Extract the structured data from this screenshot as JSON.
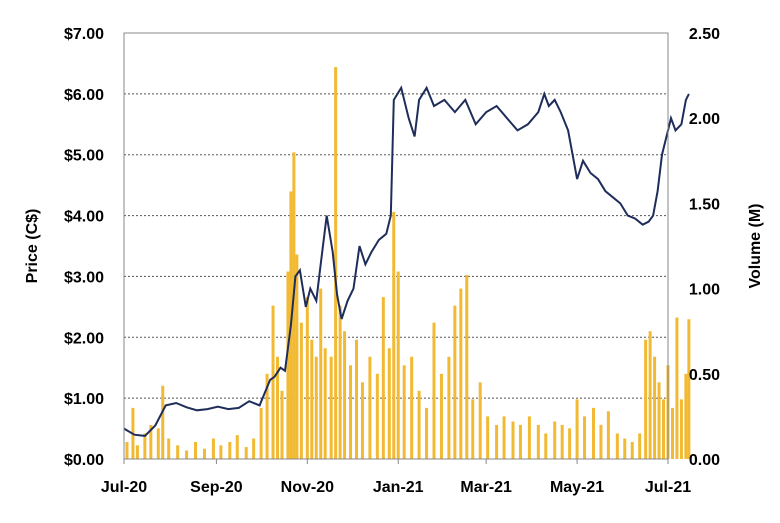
{
  "chart_data": {
    "type": "bar+line",
    "title": "",
    "xlabel": "",
    "ylabel_left": "Price (C$)",
    "ylabel_right": "Volume (M)",
    "x_ticks": [
      "Jul-20",
      "Sep-20",
      "Nov-20",
      "Jan-21",
      "Mar-21",
      "May-21",
      "Jul-21"
    ],
    "y_left_ticks": [
      "$0.00",
      "$1.00",
      "$2.00",
      "$3.00",
      "$4.00",
      "$5.00",
      "$6.00",
      "$7.00"
    ],
    "y_right_ticks": [
      "0.00",
      "0.50",
      "1.00",
      "1.50",
      "2.00",
      "2.50"
    ],
    "y_left_range": [
      0,
      7
    ],
    "y_right_range": [
      0,
      2.5
    ],
    "x_range_days": [
      0,
      365
    ],
    "grid": "horizontal-dotted",
    "colors": {
      "price_line": "#1f2d5a",
      "volume_bars": "#f2b933",
      "grid": "#555555",
      "frame": "#888888"
    },
    "series": [
      {
        "name": "",
        "kind": "line",
        "axis": "left",
        "points": [
          [
            "2020-07-01",
            0.5
          ],
          [
            "2020-07-08",
            0.4
          ],
          [
            "2020-07-15",
            0.38
          ],
          [
            "2020-07-22",
            0.55
          ],
          [
            "2020-07-29",
            0.88
          ],
          [
            "2020-08-05",
            0.92
          ],
          [
            "2020-08-12",
            0.85
          ],
          [
            "2020-08-19",
            0.8
          ],
          [
            "2020-08-26",
            0.82
          ],
          [
            "2020-09-02",
            0.86
          ],
          [
            "2020-09-09",
            0.82
          ],
          [
            "2020-09-16",
            0.84
          ],
          [
            "2020-09-23",
            0.95
          ],
          [
            "2020-09-30",
            0.88
          ],
          [
            "2020-10-07",
            1.3
          ],
          [
            "2020-10-10",
            1.35
          ],
          [
            "2020-10-14",
            1.5
          ],
          [
            "2020-10-17",
            1.45
          ],
          [
            "2020-10-21",
            2.2
          ],
          [
            "2020-10-24",
            3.0
          ],
          [
            "2020-10-27",
            3.1
          ],
          [
            "2020-10-31",
            2.5
          ],
          [
            "2020-11-03",
            2.8
          ],
          [
            "2020-11-07",
            2.6
          ],
          [
            "2020-11-10",
            3.2
          ],
          [
            "2020-11-14",
            4.0
          ],
          [
            "2020-11-18",
            3.4
          ],
          [
            "2020-11-21",
            2.7
          ],
          [
            "2020-11-24",
            2.3
          ],
          [
            "2020-11-28",
            2.6
          ],
          [
            "2020-12-02",
            2.8
          ],
          [
            "2020-12-06",
            3.5
          ],
          [
            "2020-12-10",
            3.2
          ],
          [
            "2020-12-14",
            3.4
          ],
          [
            "2020-12-19",
            3.6
          ],
          [
            "2020-12-24",
            3.7
          ],
          [
            "2020-12-27",
            4.0
          ],
          [
            "2020-12-29",
            5.9
          ],
          [
            "2021-01-03",
            6.1
          ],
          [
            "2021-01-08",
            5.6
          ],
          [
            "2021-01-12",
            5.3
          ],
          [
            "2021-01-15",
            5.9
          ],
          [
            "2021-01-20",
            6.1
          ],
          [
            "2021-01-25",
            5.8
          ],
          [
            "2021-02-01",
            5.9
          ],
          [
            "2021-02-08",
            5.7
          ],
          [
            "2021-02-15",
            5.9
          ],
          [
            "2021-02-22",
            5.5
          ],
          [
            "2021-03-01",
            5.7
          ],
          [
            "2021-03-08",
            5.8
          ],
          [
            "2021-03-15",
            5.6
          ],
          [
            "2021-03-22",
            5.4
          ],
          [
            "2021-03-29",
            5.5
          ],
          [
            "2021-04-05",
            5.7
          ],
          [
            "2021-04-09",
            6.0
          ],
          [
            "2021-04-12",
            5.8
          ],
          [
            "2021-04-16",
            5.9
          ],
          [
            "2021-04-20",
            5.7
          ],
          [
            "2021-04-25",
            5.4
          ],
          [
            "2021-04-28",
            5.0
          ],
          [
            "2021-05-01",
            4.6
          ],
          [
            "2021-05-05",
            4.9
          ],
          [
            "2021-05-10",
            4.7
          ],
          [
            "2021-05-15",
            4.6
          ],
          [
            "2021-05-20",
            4.4
          ],
          [
            "2021-05-25",
            4.3
          ],
          [
            "2021-05-30",
            4.2
          ],
          [
            "2021-06-04",
            4.0
          ],
          [
            "2021-06-09",
            3.95
          ],
          [
            "2021-06-14",
            3.85
          ],
          [
            "2021-06-18",
            3.9
          ],
          [
            "2021-06-21",
            4.0
          ],
          [
            "2021-06-24",
            4.4
          ],
          [
            "2021-06-27",
            5.0
          ],
          [
            "2021-06-30",
            5.3
          ],
          [
            "2021-07-03",
            5.6
          ],
          [
            "2021-07-06",
            5.4
          ],
          [
            "2021-07-10",
            5.5
          ],
          [
            "2021-07-13",
            5.9
          ],
          [
            "2021-07-15",
            6.0
          ]
        ]
      },
      {
        "name": "",
        "kind": "bar",
        "axis": "right",
        "points": [
          [
            "2020-07-03",
            0.1
          ],
          [
            "2020-07-07",
            0.3
          ],
          [
            "2020-07-10",
            0.08
          ],
          [
            "2020-07-15",
            0.15
          ],
          [
            "2020-07-19",
            0.2
          ],
          [
            "2020-07-24",
            0.18
          ],
          [
            "2020-07-27",
            0.43
          ],
          [
            "2020-07-31",
            0.12
          ],
          [
            "2020-08-06",
            0.08
          ],
          [
            "2020-08-12",
            0.05
          ],
          [
            "2020-08-18",
            0.1
          ],
          [
            "2020-08-24",
            0.06
          ],
          [
            "2020-08-30",
            0.12
          ],
          [
            "2020-09-04",
            0.08
          ],
          [
            "2020-09-10",
            0.1
          ],
          [
            "2020-09-15",
            0.14
          ],
          [
            "2020-09-21",
            0.07
          ],
          [
            "2020-09-26",
            0.12
          ],
          [
            "2020-10-01",
            0.3
          ],
          [
            "2020-10-05",
            0.5
          ],
          [
            "2020-10-09",
            0.9
          ],
          [
            "2020-10-12",
            0.6
          ],
          [
            "2020-10-15",
            0.4
          ],
          [
            "2020-10-19",
            1.1
          ],
          [
            "2020-10-21",
            1.57
          ],
          [
            "2020-10-23",
            1.8
          ],
          [
            "2020-10-25",
            1.2
          ],
          [
            "2020-10-28",
            0.8
          ],
          [
            "2020-11-01",
            0.95
          ],
          [
            "2020-11-04",
            0.7
          ],
          [
            "2020-11-07",
            0.6
          ],
          [
            "2020-11-10",
            1.0
          ],
          [
            "2020-11-13",
            0.65
          ],
          [
            "2020-11-17",
            0.6
          ],
          [
            "2020-11-20",
            2.3
          ],
          [
            "2020-11-23",
            0.9
          ],
          [
            "2020-11-26",
            0.75
          ],
          [
            "2020-11-30",
            0.55
          ],
          [
            "2020-12-04",
            0.7
          ],
          [
            "2020-12-08",
            0.45
          ],
          [
            "2020-12-13",
            0.6
          ],
          [
            "2020-12-18",
            0.5
          ],
          [
            "2020-12-22",
            0.95
          ],
          [
            "2020-12-26",
            0.65
          ],
          [
            "2020-12-29",
            1.45
          ],
          [
            "2021-01-01",
            1.1
          ],
          [
            "2021-01-05",
            0.55
          ],
          [
            "2021-01-10",
            0.6
          ],
          [
            "2021-01-15",
            0.4
          ],
          [
            "2021-01-20",
            0.3
          ],
          [
            "2021-01-25",
            0.8
          ],
          [
            "2021-01-30",
            0.5
          ],
          [
            "2021-02-04",
            0.6
          ],
          [
            "2021-02-08",
            0.9
          ],
          [
            "2021-02-12",
            1.0
          ],
          [
            "2021-02-16",
            1.08
          ],
          [
            "2021-02-20",
            0.35
          ],
          [
            "2021-02-25",
            0.45
          ],
          [
            "2021-03-02",
            0.25
          ],
          [
            "2021-03-08",
            0.2
          ],
          [
            "2021-03-13",
            0.25
          ],
          [
            "2021-03-19",
            0.22
          ],
          [
            "2021-03-24",
            0.2
          ],
          [
            "2021-03-30",
            0.25
          ],
          [
            "2021-04-05",
            0.2
          ],
          [
            "2021-04-10",
            0.15
          ],
          [
            "2021-04-16",
            0.22
          ],
          [
            "2021-04-21",
            0.2
          ],
          [
            "2021-04-26",
            0.18
          ],
          [
            "2021-05-01",
            0.35
          ],
          [
            "2021-05-06",
            0.25
          ],
          [
            "2021-05-12",
            0.3
          ],
          [
            "2021-05-17",
            0.2
          ],
          [
            "2021-05-22",
            0.28
          ],
          [
            "2021-05-28",
            0.15
          ],
          [
            "2021-06-02",
            0.12
          ],
          [
            "2021-06-07",
            0.1
          ],
          [
            "2021-06-12",
            0.15
          ],
          [
            "2021-06-16",
            0.7
          ],
          [
            "2021-06-19",
            0.75
          ],
          [
            "2021-06-22",
            0.6
          ],
          [
            "2021-06-25",
            0.45
          ],
          [
            "2021-06-28",
            0.35
          ],
          [
            "2021-07-01",
            0.55
          ],
          [
            "2021-07-04",
            0.3
          ],
          [
            "2021-07-07",
            0.83
          ],
          [
            "2021-07-10",
            0.35
          ],
          [
            "2021-07-13",
            0.5
          ],
          [
            "2021-07-15",
            0.82
          ]
        ]
      }
    ]
  }
}
